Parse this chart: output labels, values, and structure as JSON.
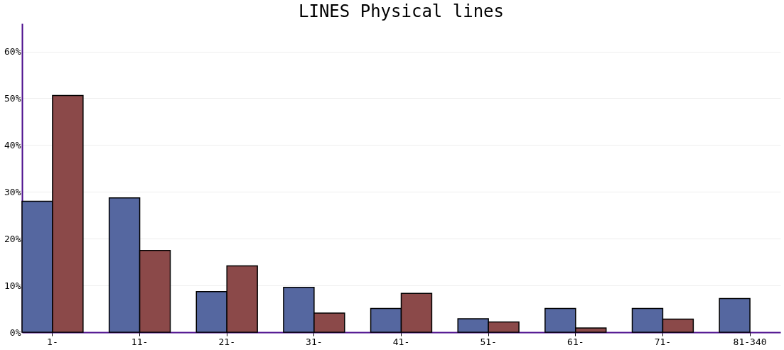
{
  "chart_data": {
    "type": "bar",
    "title": "LINES Physical lines",
    "categories": [
      "1-",
      "11-",
      "21-",
      "31-",
      "41-",
      "51-",
      "61-",
      "71-",
      "81-340"
    ],
    "series": [
      {
        "color": "#5567a0",
        "values": [
          28.0,
          28.7,
          8.7,
          9.6,
          5.1,
          2.9,
          5.1,
          5.1,
          7.2
        ]
      },
      {
        "color": "#8b4949",
        "values": [
          50.6,
          17.5,
          14.2,
          4.1,
          8.3,
          2.2,
          0.9,
          2.8,
          null
        ]
      }
    ],
    "ylim": [
      0,
      66
    ],
    "yticks": [
      {
        "value": 0,
        "label": "0%"
      },
      {
        "value": 10,
        "label": "10%"
      },
      {
        "value": 20,
        "label": "20%"
      },
      {
        "value": 30,
        "label": "30%"
      },
      {
        "value": 40,
        "label": "40%"
      },
      {
        "value": 50,
        "label": "50%"
      },
      {
        "value": 60,
        "label": "60%"
      }
    ],
    "grid": "y",
    "legend": false
  }
}
